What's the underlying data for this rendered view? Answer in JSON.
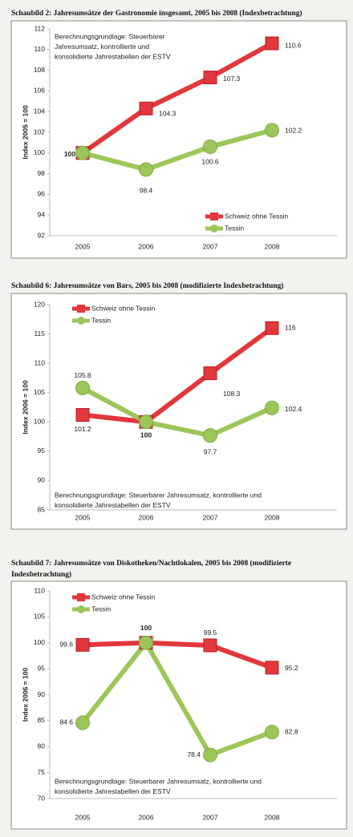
{
  "chart_data": [
    {
      "type": "line",
      "title": "Schaubild 2: Jahresumsätze der Gastronomie insgesamt, 2005 bis 2008 (Indexbetrachtung)",
      "ylabel": "Index 2005 = 100",
      "note": [
        "Berechnungsgrundlage: Steuerbarer",
        "Jahresumsatz, kontrollierte und",
        "konsolidierte Jahrestabellen der ESTV"
      ],
      "categories": [
        "2005",
        "2006",
        "2007",
        "2008"
      ],
      "series": [
        {
          "name": "Schweiz ohne Tessin",
          "color": "#e2373c",
          "marker": "square",
          "values": [
            100,
            104.3,
            107.3,
            110.6
          ]
        },
        {
          "name": "Tessin",
          "color": "#9dc65a",
          "marker": "circle",
          "values": [
            100,
            98.4,
            100.6,
            102.2
          ]
        }
      ],
      "ylim": [
        92,
        112
      ],
      "yticks": [
        92,
        94,
        96,
        98,
        100,
        102,
        104,
        106,
        108,
        110,
        112
      ],
      "legend": "lower right"
    },
    {
      "type": "line",
      "title": "Schaubild 6: Jahresumsätze von Bars, 2005 bis 2008 (modifizierte Indexbetrachtung)",
      "ylabel": "Index 2006 = 100",
      "note": [
        "Berechnungsgrundlage: Steuerbarer Jahresumsatz, kontrollierte und",
        "konsolidierte Jahrestabellen der ESTV"
      ],
      "categories": [
        "2005",
        "2006",
        "2007",
        "2008"
      ],
      "series": [
        {
          "name": "Schweiz ohne Tessin",
          "color": "#e2373c",
          "marker": "square",
          "values": [
            101.2,
            100,
            108.3,
            116
          ]
        },
        {
          "name": "Tessin",
          "color": "#9dc65a",
          "marker": "circle",
          "values": [
            105.8,
            100,
            97.7,
            102.4
          ]
        }
      ],
      "ylim": [
        85,
        120
      ],
      "yticks": [
        85,
        90,
        95,
        100,
        105,
        110,
        115,
        120
      ],
      "legend": "upper left"
    },
    {
      "type": "line",
      "title": "Schaubild 7: Jahresumsätze von Diskotheken/Nachtlokalen, 2005 bis 2008 (modifizierte Indexbetrachtung)",
      "ylabel": "Index 2006 = 100",
      "note": [
        "Berechnungsgrundlage: Steuerbarer Jahresumsatz, kontrollierte und",
        "konsolidierte Jahrestabellen der ESTV"
      ],
      "categories": [
        "2005",
        "2006",
        "2007",
        "2008"
      ],
      "series": [
        {
          "name": "Schweiz ohne Tessin",
          "color": "#e2373c",
          "marker": "square",
          "values": [
            99.6,
            100,
            99.5,
            95.2
          ]
        },
        {
          "name": "Tessin",
          "color": "#9dc65a",
          "marker": "circle",
          "values": [
            84.6,
            100,
            78.4,
            82.8
          ]
        }
      ],
      "ylim": [
        70,
        110
      ],
      "yticks": [
        70,
        75,
        80,
        85,
        90,
        95,
        100,
        105,
        110
      ],
      "legend": "upper left"
    }
  ]
}
